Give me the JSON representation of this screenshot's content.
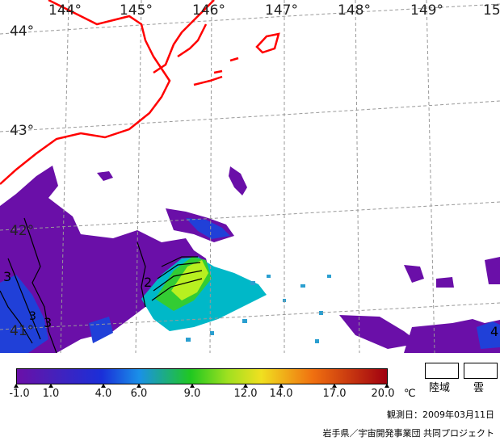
{
  "map": {
    "lon_labels": [
      "144°",
      "145°",
      "146°",
      "147°",
      "148°",
      "149°",
      "15"
    ],
    "lat_labels": [
      "44°",
      "43°",
      "42°",
      "41°"
    ],
    "contour_labels": [
      "2",
      "3",
      "3",
      "4",
      "3"
    ],
    "colors": {
      "coast": "#ff0000",
      "grid": "#999999",
      "contour": "#000000"
    }
  },
  "colorbar": {
    "ticks": [
      "-1.0",
      "1.0",
      "4.0",
      "6.0",
      "9.0",
      "12.0",
      "14.0",
      "17.0",
      "20.0"
    ],
    "unit": "℃"
  },
  "legend": {
    "land": "陸域",
    "cloud": "雲"
  },
  "observation_date": "観測日：2009年03月11日",
  "credit": "岩手県／宇宙開発事業団 共同プロジェクト"
}
